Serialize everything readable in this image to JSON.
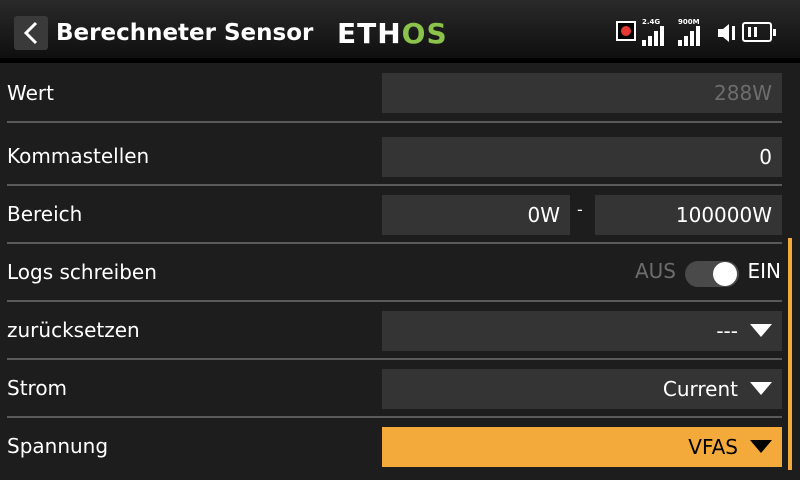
{
  "header": {
    "title": "Berechneter Sensor",
    "logo_left": "ETH",
    "logo_right": "OS",
    "back_icon": "chevron-left-icon",
    "rf_24_label": "2.4G",
    "rf_900_label": "900M"
  },
  "rows": {
    "wert": {
      "label": "Wert",
      "value": "288W"
    },
    "kommastellen": {
      "label": "Kommastellen",
      "value": "0"
    },
    "bereich": {
      "label": "Bereich",
      "min": "0W",
      "separator": "-",
      "max": "100000W"
    },
    "logs": {
      "label": "Logs schreiben",
      "off_label": "AUS",
      "on_label": "EIN"
    },
    "reset": {
      "label": "zurücksetzen",
      "value": "---"
    },
    "strom": {
      "label": "Strom",
      "value": "Current"
    },
    "spannung": {
      "label": "Spannung",
      "value": "VFAS"
    }
  },
  "colors": {
    "accent": "#f4aa3b",
    "field_bg": "#343434",
    "background": "#1d1d1d",
    "logo_green": "#8bc34a",
    "record": "#e53935"
  }
}
